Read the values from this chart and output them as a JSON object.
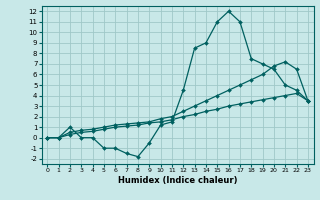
{
  "xlabel": "Humidex (Indice chaleur)",
  "bg_color": "#c8e8e8",
  "grid_color": "#a0c8c8",
  "line_color": "#006060",
  "xlim": [
    -0.5,
    23.5
  ],
  "ylim": [
    -2.5,
    12.5
  ],
  "xticks": [
    0,
    1,
    2,
    3,
    4,
    5,
    6,
    7,
    8,
    9,
    10,
    11,
    12,
    13,
    14,
    15,
    16,
    17,
    18,
    19,
    20,
    21,
    22,
    23
  ],
  "yticks": [
    -2,
    -1,
    0,
    1,
    2,
    3,
    4,
    5,
    6,
    7,
    8,
    9,
    10,
    11,
    12
  ],
  "line1_x": [
    0,
    1,
    2,
    3,
    4,
    5,
    6,
    7,
    8,
    9,
    10,
    11,
    12,
    13,
    14,
    15,
    16,
    17,
    18,
    19,
    20,
    21,
    22,
    23
  ],
  "line1_y": [
    0,
    0,
    1,
    0,
    0,
    -1,
    -1,
    -1.5,
    -1.8,
    -0.5,
    1.2,
    1.5,
    4.5,
    8.5,
    9.0,
    11.0,
    12.0,
    11.0,
    7.5,
    7.0,
    6.5,
    5.0,
    4.5,
    3.5
  ],
  "line2_x": [
    0,
    1,
    2,
    3,
    4,
    5,
    6,
    7,
    8,
    9,
    10,
    11,
    12,
    13,
    14,
    15,
    16,
    17,
    18,
    19,
    20,
    21,
    22,
    23
  ],
  "line2_y": [
    0,
    0,
    0.3,
    0.5,
    0.6,
    0.8,
    1.0,
    1.1,
    1.2,
    1.4,
    1.5,
    1.7,
    2.0,
    2.2,
    2.5,
    2.7,
    3.0,
    3.2,
    3.4,
    3.6,
    3.8,
    4.0,
    4.2,
    3.5
  ],
  "line3_x": [
    0,
    1,
    2,
    3,
    4,
    5,
    6,
    7,
    8,
    9,
    10,
    11,
    12,
    13,
    14,
    15,
    16,
    17,
    18,
    19,
    20,
    21,
    22,
    23
  ],
  "line3_y": [
    0,
    0,
    0.5,
    0.7,
    0.8,
    1.0,
    1.2,
    1.3,
    1.4,
    1.5,
    1.8,
    2.0,
    2.5,
    3.0,
    3.5,
    4.0,
    4.5,
    5.0,
    5.5,
    6.0,
    6.8,
    7.2,
    6.5,
    3.5
  ]
}
